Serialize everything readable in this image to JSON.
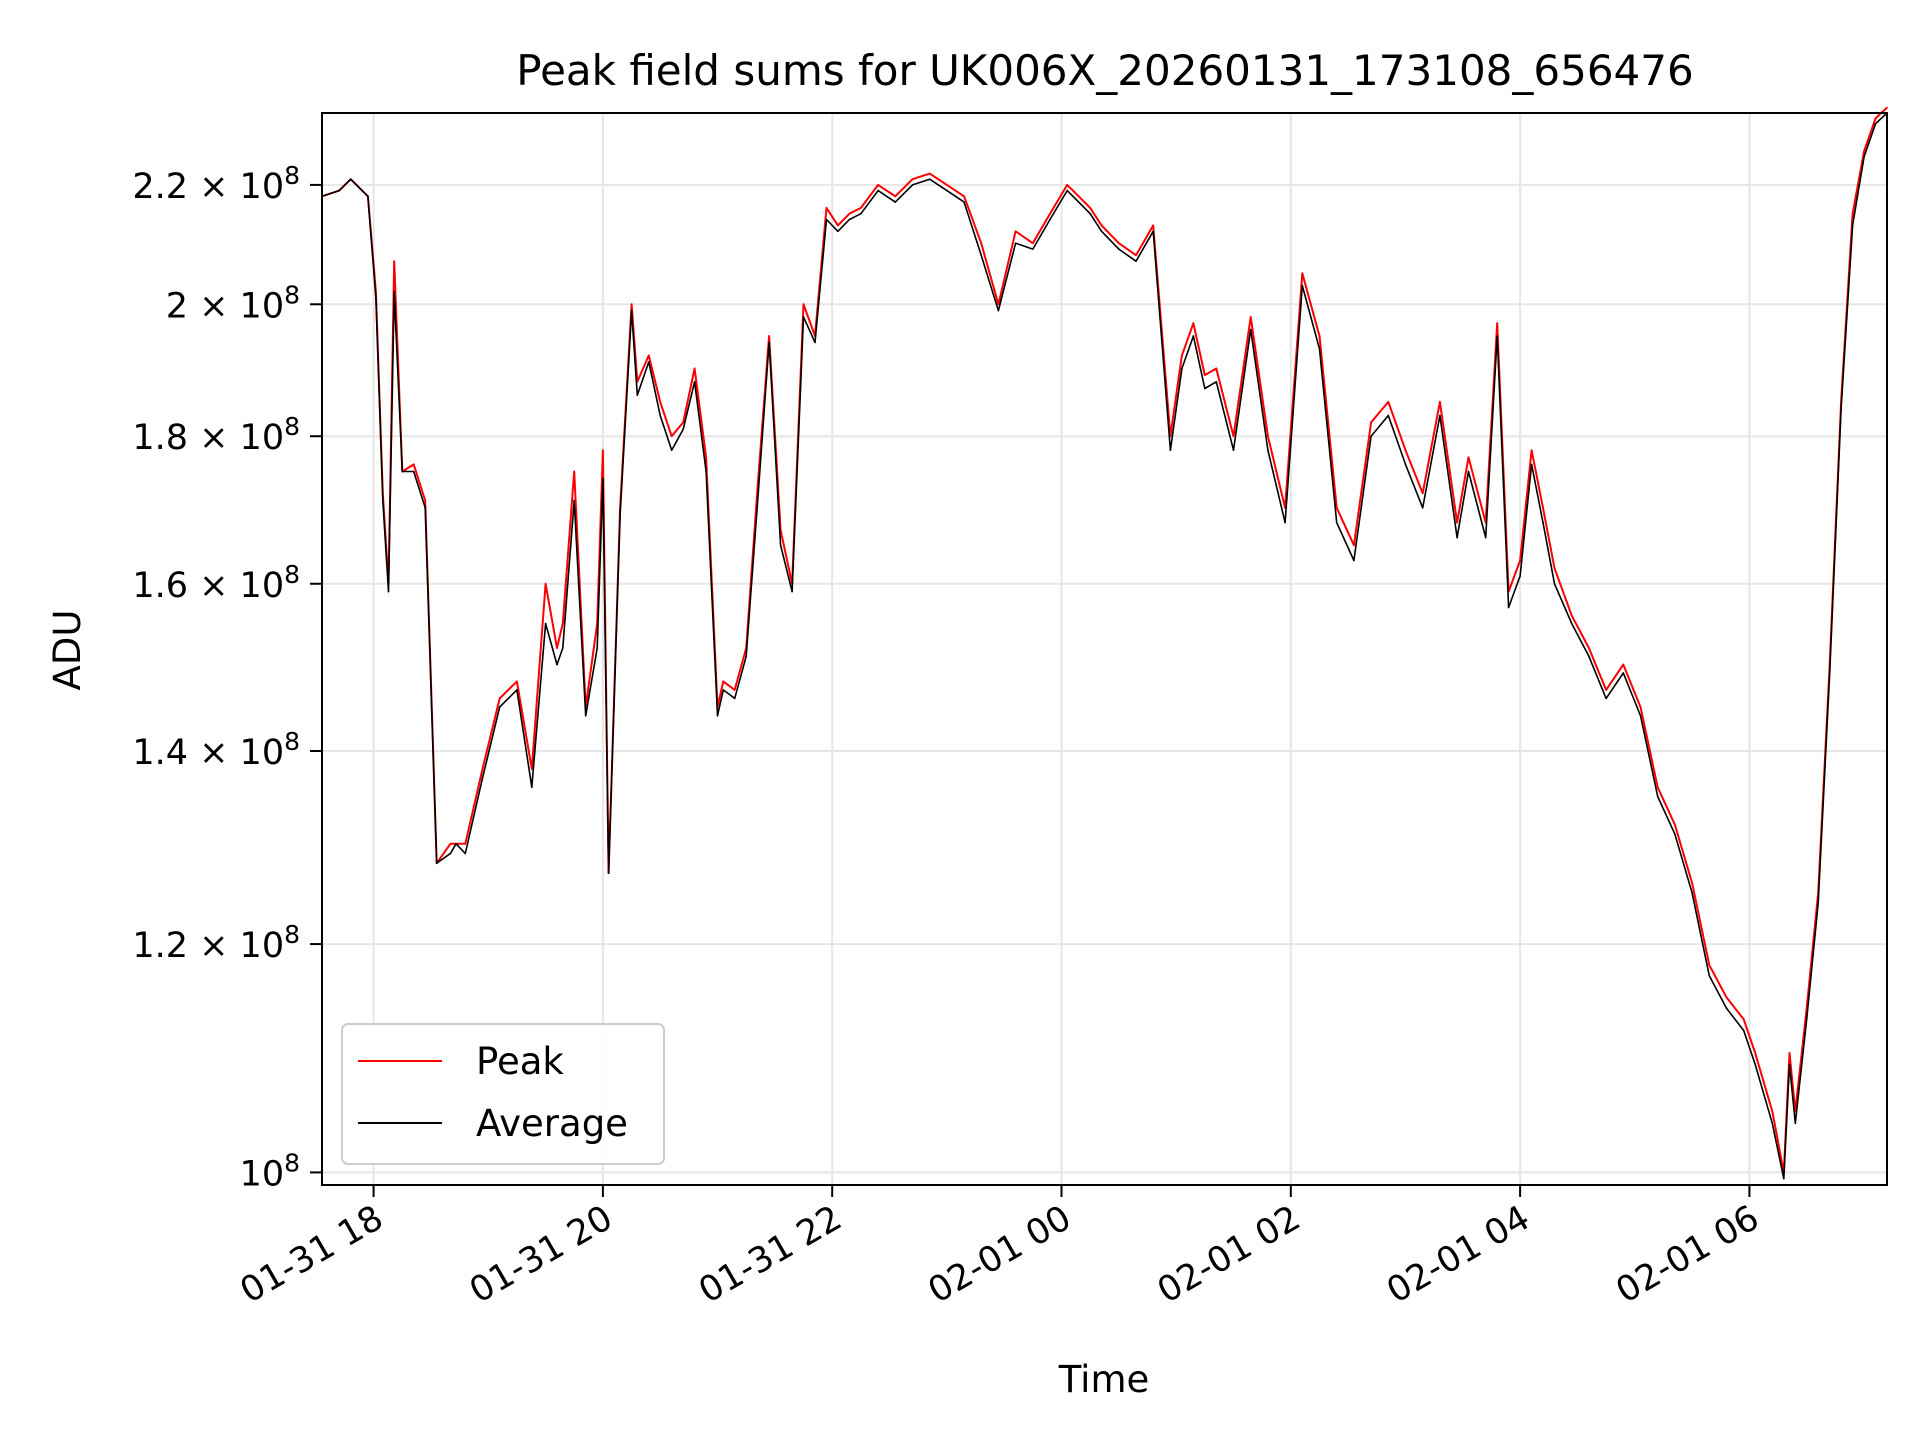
{
  "chart_data": {
    "type": "line",
    "title": "Peak field sums for UK006X_20260131_173108_656476",
    "xlabel": "Time",
    "ylabel": "ADU",
    "yscale": "log",
    "ylim": [
      99000000,
      233000000
    ],
    "xlim_hours": [
      -6.45,
      7.2
    ],
    "x_unit": "hours since 2026-02-01 00:00",
    "grid": true,
    "legend_position": "lower-left",
    "x_ticks": [
      {
        "label": "01-31 18",
        "value": -6
      },
      {
        "label": "01-31 20",
        "value": -4
      },
      {
        "label": "01-31 22",
        "value": -2
      },
      {
        "label": "02-01 00",
        "value": 0
      },
      {
        "label": "02-01 02",
        "value": 2
      },
      {
        "label": "02-01 04",
        "value": 4
      },
      {
        "label": "02-01 06",
        "value": 6
      }
    ],
    "y_ticks": [
      {
        "mantissa": "2.2",
        "exp": "8",
        "value": 220000000
      },
      {
        "mantissa": "2",
        "exp": "8",
        "value": 200000000
      },
      {
        "mantissa": "1.8",
        "exp": "8",
        "value": 180000000
      },
      {
        "mantissa": "1.6",
        "exp": "8",
        "value": 160000000
      },
      {
        "mantissa": "1.4",
        "exp": "8",
        "value": 140000000
      },
      {
        "mantissa": "1.2",
        "exp": "8",
        "value": 120000000
      },
      {
        "mantissa": "",
        "exp": "8",
        "value": 100000000
      }
    ],
    "x": [
      -6.45,
      -6.3,
      -6.2,
      -6.05,
      -5.98,
      -5.92,
      -5.87,
      -5.82,
      -5.75,
      -5.65,
      -5.55,
      -5.45,
      -5.33,
      -5.28,
      -5.2,
      -5.05,
      -4.9,
      -4.75,
      -4.62,
      -4.5,
      -4.4,
      -4.35,
      -4.25,
      -4.15,
      -4.05,
      -4.0,
      -3.95,
      -3.85,
      -3.75,
      -3.7,
      -3.6,
      -3.5,
      -3.4,
      -3.3,
      -3.2,
      -3.1,
      -3.0,
      -2.95,
      -2.85,
      -2.75,
      -2.65,
      -2.55,
      -2.45,
      -2.35,
      -2.25,
      -2.15,
      -2.05,
      -1.95,
      -1.85,
      -1.75,
      -1.6,
      -1.45,
      -1.3,
      -1.15,
      -1.0,
      -0.85,
      -0.7,
      -0.55,
      -0.4,
      -0.25,
      -0.1,
      0.05,
      0.15,
      0.25,
      0.35,
      0.5,
      0.65,
      0.8,
      0.95,
      1.05,
      1.15,
      1.25,
      1.35,
      1.5,
      1.65,
      1.8,
      1.95,
      2.1,
      2.25,
      2.4,
      2.55,
      2.7,
      2.85,
      3.0,
      3.15,
      3.3,
      3.45,
      3.55,
      3.7,
      3.8,
      3.9,
      4.0,
      4.1,
      4.2,
      4.3,
      4.45,
      4.6,
      4.75,
      4.9,
      5.05,
      5.2,
      5.35,
      5.5,
      5.65,
      5.8,
      5.95,
      6.05,
      6.2,
      6.3,
      6.35,
      6.4,
      6.5,
      6.6,
      6.7,
      6.8,
      6.9,
      7.0,
      7.1,
      7.2
    ],
    "series": [
      {
        "name": "Peak",
        "color": "#ff0000",
        "values": [
          218000000,
          219000000,
          221000000,
          218000000,
          202000000,
          172000000,
          160000000,
          207000000,
          175000000,
          176000000,
          171000000,
          128000000,
          130000000,
          130000000,
          130000000,
          138000000,
          146000000,
          148000000,
          138000000,
          160000000,
          152000000,
          155000000,
          175000000,
          145000000,
          155000000,
          178000000,
          127000000,
          170000000,
          200000000,
          188000000,
          192000000,
          185000000,
          180000000,
          182000000,
          190000000,
          177000000,
          145000000,
          148000000,
          147000000,
          152000000,
          173000000,
          195000000,
          167000000,
          160000000,
          200000000,
          195000000,
          216000000,
          213000000,
          215000000,
          216000000,
          220000000,
          218000000,
          221000000,
          222000000,
          220000000,
          218000000,
          210000000,
          200000000,
          212000000,
          210000000,
          215000000,
          220000000,
          218000000,
          216000000,
          213000000,
          210000000,
          208000000,
          213000000,
          180000000,
          192000000,
          197000000,
          189000000,
          190000000,
          180000000,
          198000000,
          180000000,
          170000000,
          205000000,
          195000000,
          170000000,
          165000000,
          182000000,
          185000000,
          178000000,
          172000000,
          185000000,
          168000000,
          177000000,
          168000000,
          197000000,
          159000000,
          163000000,
          178000000,
          170000000,
          162000000,
          156000000,
          152000000,
          147000000,
          150000000,
          145000000,
          136000000,
          132000000,
          126000000,
          118000000,
          115000000,
          113000000,
          110000000,
          105000000,
          100000000,
          110000000,
          105000000,
          114000000,
          125000000,
          150000000,
          185000000,
          215000000,
          226000000,
          232000000,
          234000000
        ]
      },
      {
        "name": "Average",
        "color": "#000000",
        "values": [
          218000000,
          219000000,
          221000000,
          218000000,
          201000000,
          171000000,
          159000000,
          202000000,
          175000000,
          175000000,
          170000000,
          128000000,
          129000000,
          130000000,
          129000000,
          137000000,
          145000000,
          147000000,
          136000000,
          155000000,
          150000000,
          152000000,
          171000000,
          144000000,
          152000000,
          174000000,
          127000000,
          169000000,
          199000000,
          186000000,
          191000000,
          183000000,
          178000000,
          181000000,
          188000000,
          175000000,
          144000000,
          147000000,
          146000000,
          151000000,
          171000000,
          194000000,
          165000000,
          159000000,
          198000000,
          194000000,
          214000000,
          212000000,
          214000000,
          215000000,
          219000000,
          217000000,
          220000000,
          221000000,
          219000000,
          217000000,
          208000000,
          199000000,
          210000000,
          209000000,
          214000000,
          219000000,
          217000000,
          215000000,
          212000000,
          209000000,
          207000000,
          212000000,
          178000000,
          190000000,
          195000000,
          187000000,
          188000000,
          178000000,
          196000000,
          178000000,
          168000000,
          203000000,
          193000000,
          168000000,
          163000000,
          180000000,
          183000000,
          176000000,
          170000000,
          183000000,
          166000000,
          175000000,
          166000000,
          195000000,
          157000000,
          161000000,
          176000000,
          168000000,
          160000000,
          155000000,
          151000000,
          146000000,
          149000000,
          144000000,
          135000000,
          131000000,
          125000000,
          117000000,
          114000000,
          112000000,
          109000000,
          104000000,
          99500000,
          109000000,
          104000000,
          113000000,
          124000000,
          149000000,
          184000000,
          213000000,
          225000000,
          231000000,
          233000000
        ]
      }
    ]
  }
}
